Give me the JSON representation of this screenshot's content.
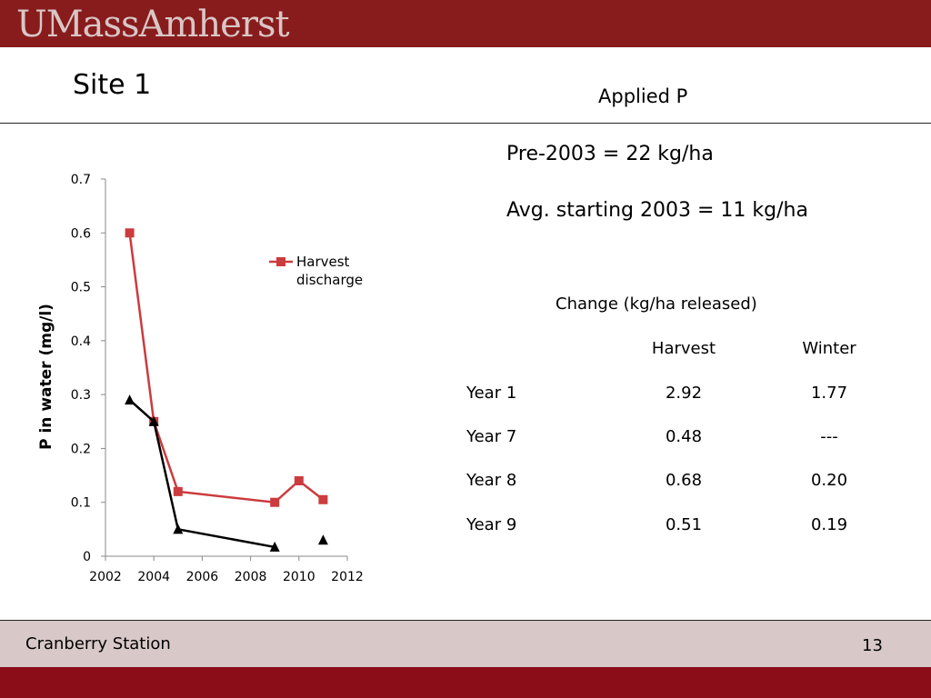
{
  "header": {
    "logo_text": "UMassAmherst",
    "brand_color": "#881c1c"
  },
  "slide": {
    "title": "Site 1",
    "subtitle": "Applied P",
    "stats": [
      "Pre-2003 = 22 kg/ha",
      "Avg. starting 2003 = 11 kg/ha"
    ]
  },
  "table": {
    "caption": "Change (kg/ha released)",
    "columns": [
      "Harvest",
      "Winter"
    ],
    "rows": [
      {
        "label": "Year 1",
        "values": [
          "2.92",
          "1.77"
        ]
      },
      {
        "label": "Year 7",
        "values": [
          "0.48",
          "---"
        ]
      },
      {
        "label": "Year 8",
        "values": [
          "0.68",
          "0.20"
        ]
      },
      {
        "label": "Year 9",
        "values": [
          "0.51",
          "0.19"
        ]
      }
    ]
  },
  "footer": {
    "text": "Cranberry Station",
    "page": "13"
  },
  "chart_data": {
    "type": "line",
    "ylabel": "P in water (mg/l)",
    "xlabel": "",
    "xlim": [
      2002,
      2012
    ],
    "ylim": [
      0,
      0.7
    ],
    "x_ticks": [
      "2002",
      "2004",
      "2006",
      "2008",
      "2010",
      "2012"
    ],
    "y_ticks": [
      "0",
      "0.1",
      "0.2",
      "0.3",
      "0.4",
      "0.5",
      "0.6",
      "0.7"
    ],
    "legend_position": "top-right",
    "series": [
      {
        "name": "Harvest discharge",
        "legend_lines": [
          "Harvest",
          "discharge"
        ],
        "color": "#cc3b3e",
        "marker": "square",
        "points": [
          [
            2003,
            0.6
          ],
          [
            2004,
            0.25
          ],
          [
            2005,
            0.12
          ],
          [
            2009,
            0.1
          ],
          [
            2010,
            0.14
          ],
          [
            2011,
            0.105
          ]
        ]
      },
      {
        "color": "#000000",
        "marker": "triangle",
        "segments": [
          [
            [
              2003,
              0.29
            ],
            [
              2004,
              0.25
            ],
            [
              2005,
              0.05
            ],
            [
              2009,
              0.017
            ]
          ],
          [
            [
              2011,
              0.03
            ]
          ]
        ]
      }
    ]
  }
}
